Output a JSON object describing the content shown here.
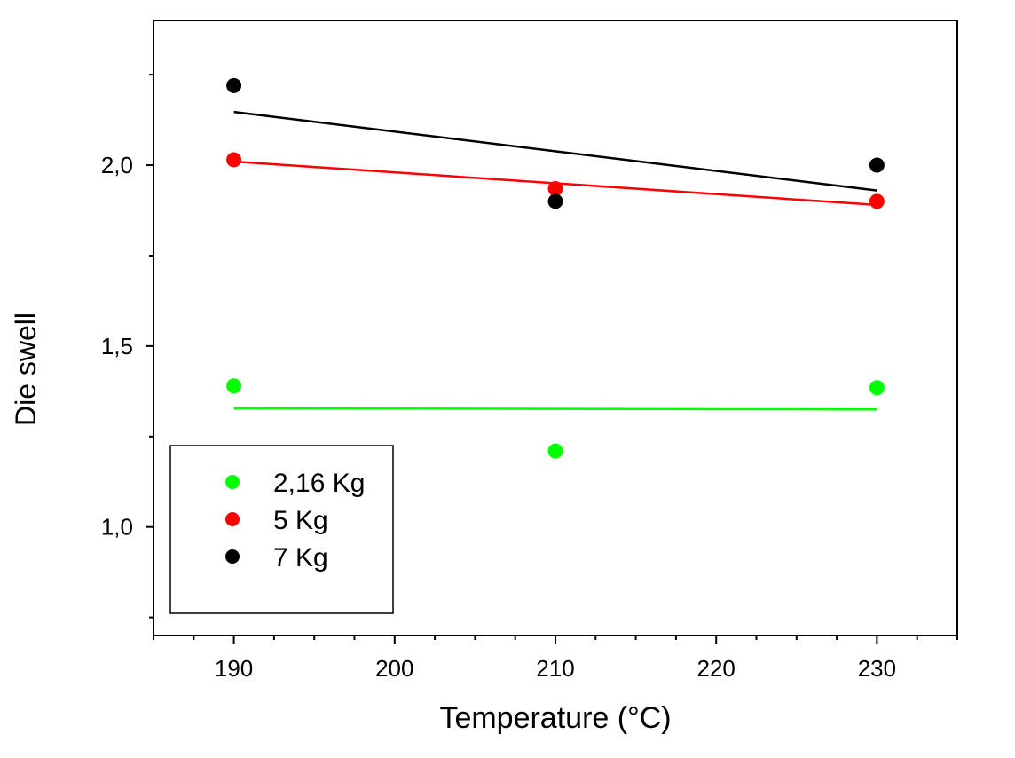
{
  "chart_data": {
    "type": "scatter",
    "xlabel": "Temperature (°C)",
    "ylabel": "Die swell",
    "xlim": [
      185,
      235
    ],
    "ylim": [
      0.7,
      2.4
    ],
    "x_ticks": [
      190,
      200,
      210,
      220,
      230
    ],
    "x_tick_labels": [
      "190",
      "200",
      "210",
      "220",
      "230"
    ],
    "y_ticks": [
      1.0,
      1.5,
      2.0
    ],
    "y_tick_labels": [
      "1,0",
      "1,5",
      "2,0"
    ],
    "legend_position": "bottom-left",
    "grid": false,
    "series": [
      {
        "name": "2,16 Kg",
        "color": "#00ff00",
        "x": [
          190,
          210,
          230
        ],
        "y": [
          1.39,
          1.21,
          1.385
        ],
        "fit": {
          "x": [
            190,
            230
          ],
          "y": [
            1.328,
            1.325
          ]
        }
      },
      {
        "name": "5 Kg",
        "color": "#ff0000",
        "x": [
          190,
          210,
          230
        ],
        "y": [
          2.015,
          1.935,
          1.9
        ],
        "fit": {
          "x": [
            190,
            230
          ],
          "y": [
            2.01,
            1.89
          ]
        }
      },
      {
        "name": "7 Kg",
        "color": "#000000",
        "x": [
          190,
          210,
          230
        ],
        "y": [
          2.22,
          1.9,
          2.0
        ],
        "fit": {
          "x": [
            190,
            230
          ],
          "y": [
            2.147,
            1.93
          ]
        }
      }
    ]
  }
}
